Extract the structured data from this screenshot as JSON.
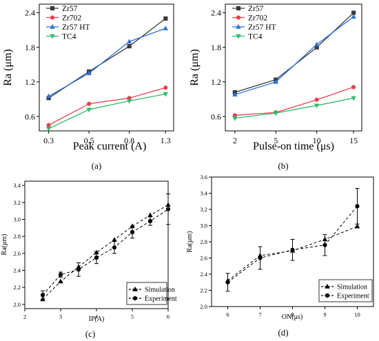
{
  "chart_data": [
    {
      "type": "line",
      "panel_label": "(a)",
      "xlabel": "Peak current (A)",
      "ylabel": "Ra (μm)",
      "categories": [
        "0.3",
        "0.5",
        "0.8",
        "1.3"
      ],
      "ylim": [
        0.35,
        2.55
      ],
      "yticks": [
        0.6,
        1.2,
        1.8,
        2.4
      ],
      "legend_position": "top-left",
      "series": [
        {
          "name": "Zr57",
          "marker": "square",
          "color": "#3a3a3a",
          "values": [
            0.92,
            1.38,
            1.82,
            2.3
          ]
        },
        {
          "name": "Zr702",
          "marker": "circle",
          "color": "#e8414b",
          "values": [
            0.45,
            0.82,
            0.92,
            1.1
          ]
        },
        {
          "name": "Zr57 HT",
          "marker": "triangle-up",
          "color": "#2b72d8",
          "values": [
            0.95,
            1.35,
            1.9,
            2.13
          ]
        },
        {
          "name": "TC4",
          "marker": "triangle-down",
          "color": "#2ebc6a",
          "values": [
            0.39,
            0.72,
            0.87,
            0.99
          ]
        }
      ]
    },
    {
      "type": "line",
      "panel_label": "(b)",
      "xlabel": "Pulse-on time (μs)",
      "ylabel": "Ra (μm)",
      "categories": [
        "2",
        "5",
        "10",
        "15"
      ],
      "ylim": [
        0.35,
        2.55
      ],
      "yticks": [
        0.6,
        1.2,
        1.8,
        2.4
      ],
      "legend_position": "top-left",
      "series": [
        {
          "name": "Zr57",
          "marker": "square",
          "color": "#3a3a3a",
          "values": [
            1.02,
            1.24,
            1.8,
            2.4
          ]
        },
        {
          "name": "Zr702",
          "marker": "circle",
          "color": "#e8414b",
          "values": [
            0.62,
            0.67,
            0.89,
            1.11
          ]
        },
        {
          "name": "Zr57 HT",
          "marker": "triangle-up",
          "color": "#2b72d8",
          "values": [
            0.98,
            1.2,
            1.85,
            2.33
          ]
        },
        {
          "name": "TC4",
          "marker": "triangle-down",
          "color": "#2ebc6a",
          "values": [
            0.57,
            0.66,
            0.79,
            0.92
          ]
        }
      ]
    },
    {
      "type": "line",
      "panel_label": "(c)",
      "xlabel": "IP(A)",
      "ylabel": "Ra(μm)",
      "xlim": [
        2,
        6
      ],
      "xticks": [
        2,
        3,
        4,
        5,
        6
      ],
      "ylim": [
        1.95,
        3.45
      ],
      "yticks": [
        2.0,
        2.2,
        2.4,
        2.6,
        2.8,
        3.0,
        3.2,
        3.4
      ],
      "legend_position": "bottom-right",
      "series": [
        {
          "name": "Simulation",
          "marker": "triangle-up",
          "color": "#000000",
          "x": [
            2.5,
            3.0,
            3.5,
            4.0,
            4.5,
            5.0,
            5.5,
            6.0
          ],
          "values": [
            2.06,
            2.27,
            2.44,
            2.61,
            2.76,
            2.92,
            3.05,
            3.17
          ]
        },
        {
          "name": "Experiment",
          "marker": "circle",
          "color": "#000000",
          "x": [
            2.5,
            3.0,
            3.5,
            4.0,
            4.5,
            5.0,
            5.5,
            6.0
          ],
          "values": [
            2.11,
            2.35,
            2.41,
            2.55,
            2.67,
            2.85,
            2.98,
            3.12
          ],
          "errors": [
            0.05,
            0.03,
            0.08,
            0.07,
            0.07,
            0.07,
            0.05,
            0.18
          ]
        }
      ]
    },
    {
      "type": "line",
      "panel_label": "(d)",
      "xlabel": "ON(μs)",
      "ylabel": "Ra(μm)",
      "xlim": [
        5.5,
        10.5
      ],
      "xticks": [
        6,
        7,
        8,
        9,
        10
      ],
      "ylim": [
        2.0,
        3.6
      ],
      "yticks": [
        2.0,
        2.2,
        2.4,
        2.6,
        2.8,
        3.0,
        3.2,
        3.4,
        3.6
      ],
      "legend_position": "bottom-right",
      "series": [
        {
          "name": "Simulation",
          "marker": "triangle-up",
          "color": "#000000",
          "x": [
            6,
            7,
            8,
            9,
            10
          ],
          "values": [
            2.32,
            2.63,
            2.69,
            2.83,
            2.99
          ]
        },
        {
          "name": "Experiment",
          "marker": "circle",
          "color": "#000000",
          "x": [
            6,
            7,
            8,
            9,
            10
          ],
          "values": [
            2.3,
            2.6,
            2.7,
            2.76,
            3.24
          ],
          "errors": [
            0.11,
            0.14,
            0.13,
            0.13,
            0.22
          ]
        }
      ]
    }
  ]
}
